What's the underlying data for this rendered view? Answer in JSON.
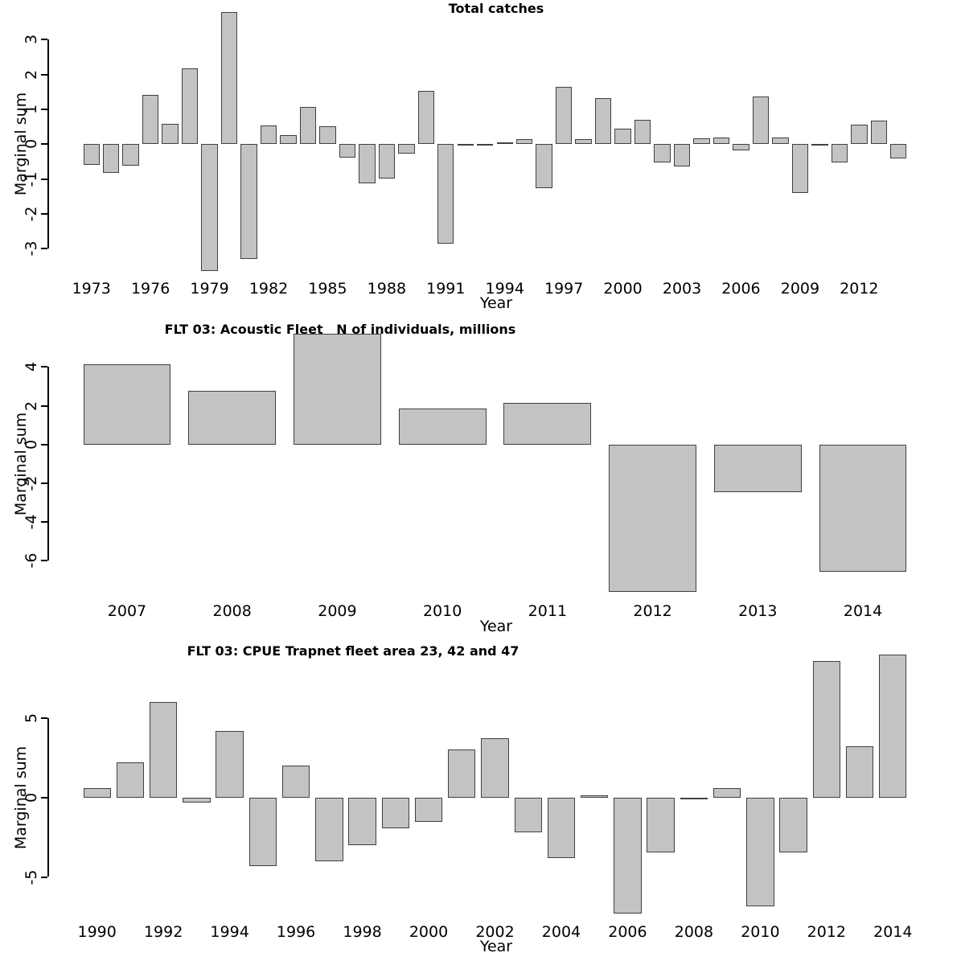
{
  "chart_data": [
    {
      "type": "bar",
      "title": "Total catches",
      "xlabel": "Year",
      "ylabel": "Marginal sum",
      "categories": [
        1973,
        1974,
        1975,
        1976,
        1977,
        1978,
        1979,
        1980,
        1981,
        1982,
        1983,
        1984,
        1985,
        1986,
        1987,
        1988,
        1989,
        1990,
        1991,
        1992,
        1993,
        1994,
        1995,
        1996,
        1997,
        1998,
        1999,
        2000,
        2001,
        2002,
        2003,
        2004,
        2005,
        2006,
        2007,
        2008,
        2009,
        2010,
        2011,
        2012,
        2013,
        2014
      ],
      "values": [
        -0.6,
        -0.82,
        -0.62,
        1.42,
        0.58,
        2.18,
        -3.64,
        3.8,
        -3.3,
        0.54,
        0.27,
        1.07,
        0.51,
        -0.39,
        -1.13,
        -0.98,
        -0.27,
        1.53,
        -2.85,
        -0.02,
        -0.04,
        0.05,
        0.15,
        -1.26,
        1.65,
        0.15,
        1.32,
        0.45,
        0.7,
        -0.53,
        -0.65,
        0.17,
        0.19,
        -0.18,
        1.37,
        0.2,
        -1.39,
        -0.03,
        -0.53,
        0.56,
        0.68,
        -0.42
      ],
      "yticks": [
        3,
        2,
        1,
        0,
        -1,
        -2,
        -3
      ],
      "xtick_labels": [
        "1973",
        "1976",
        "1979",
        "1982",
        "1985",
        "1988",
        "1991",
        "1994",
        "1997",
        "2000",
        "2003",
        "2006",
        "2009",
        "2012"
      ],
      "ylim": [
        -3.7,
        3.85
      ],
      "grid": false,
      "legend": "none",
      "bar_color": "#c3c3c3",
      "bar_border": "#404040"
    },
    {
      "type": "bar",
      "title": "FLT 03: Acoustic Fleet   N of individuals, millions",
      "xlabel": "Year",
      "ylabel": "Marginal sum",
      "categories": [
        2007,
        2008,
        2009,
        2010,
        2011,
        2012,
        2013,
        2014
      ],
      "values": [
        4.13,
        2.77,
        5.7,
        1.86,
        2.15,
        -7.6,
        -2.45,
        -6.55
      ],
      "yticks": [
        4,
        2,
        0,
        -2,
        -4,
        -6
      ],
      "xtick_labels": [
        "2007",
        "2008",
        "2009",
        "2010",
        "2011",
        "2012",
        "2013",
        "2014"
      ],
      "ylim": [
        -7.7,
        5.8
      ],
      "grid": false,
      "legend": "none",
      "bar_color": "#c3c3c3",
      "bar_border": "#404040"
    },
    {
      "type": "bar",
      "title": "FLT 03: CPUE Trapnet fleet area 23, 42 and 47",
      "xlabel": "Year",
      "ylabel": "Marginal sum",
      "categories": [
        1990,
        1991,
        1992,
        1993,
        1994,
        1995,
        1996,
        1997,
        1998,
        1999,
        2000,
        2001,
        2002,
        2003,
        2004,
        2005,
        2006,
        2007,
        2008,
        2009,
        2010,
        2011,
        2012,
        2013,
        2014
      ],
      "values": [
        0.62,
        2.2,
        6.0,
        -0.3,
        4.2,
        -4.3,
        2.0,
        -4.0,
        -3.0,
        -1.95,
        -1.55,
        3.05,
        3.75,
        -2.2,
        -3.8,
        0.15,
        -7.3,
        -3.45,
        -0.05,
        0.62,
        -6.85,
        -3.45,
        8.6,
        3.25,
        9.0
      ],
      "yticks": [
        5,
        0,
        -5
      ],
      "xtick_labels": [
        "1990",
        "1992",
        "1994",
        "1996",
        "1998",
        "2000",
        "2002",
        "2004",
        "2006",
        "2008",
        "2010",
        "2012",
        "2014"
      ],
      "ylim": [
        -7.5,
        9.1
      ],
      "grid": false,
      "legend": "none",
      "bar_color": "#c3c3c3",
      "bar_border": "#404040"
    }
  ]
}
